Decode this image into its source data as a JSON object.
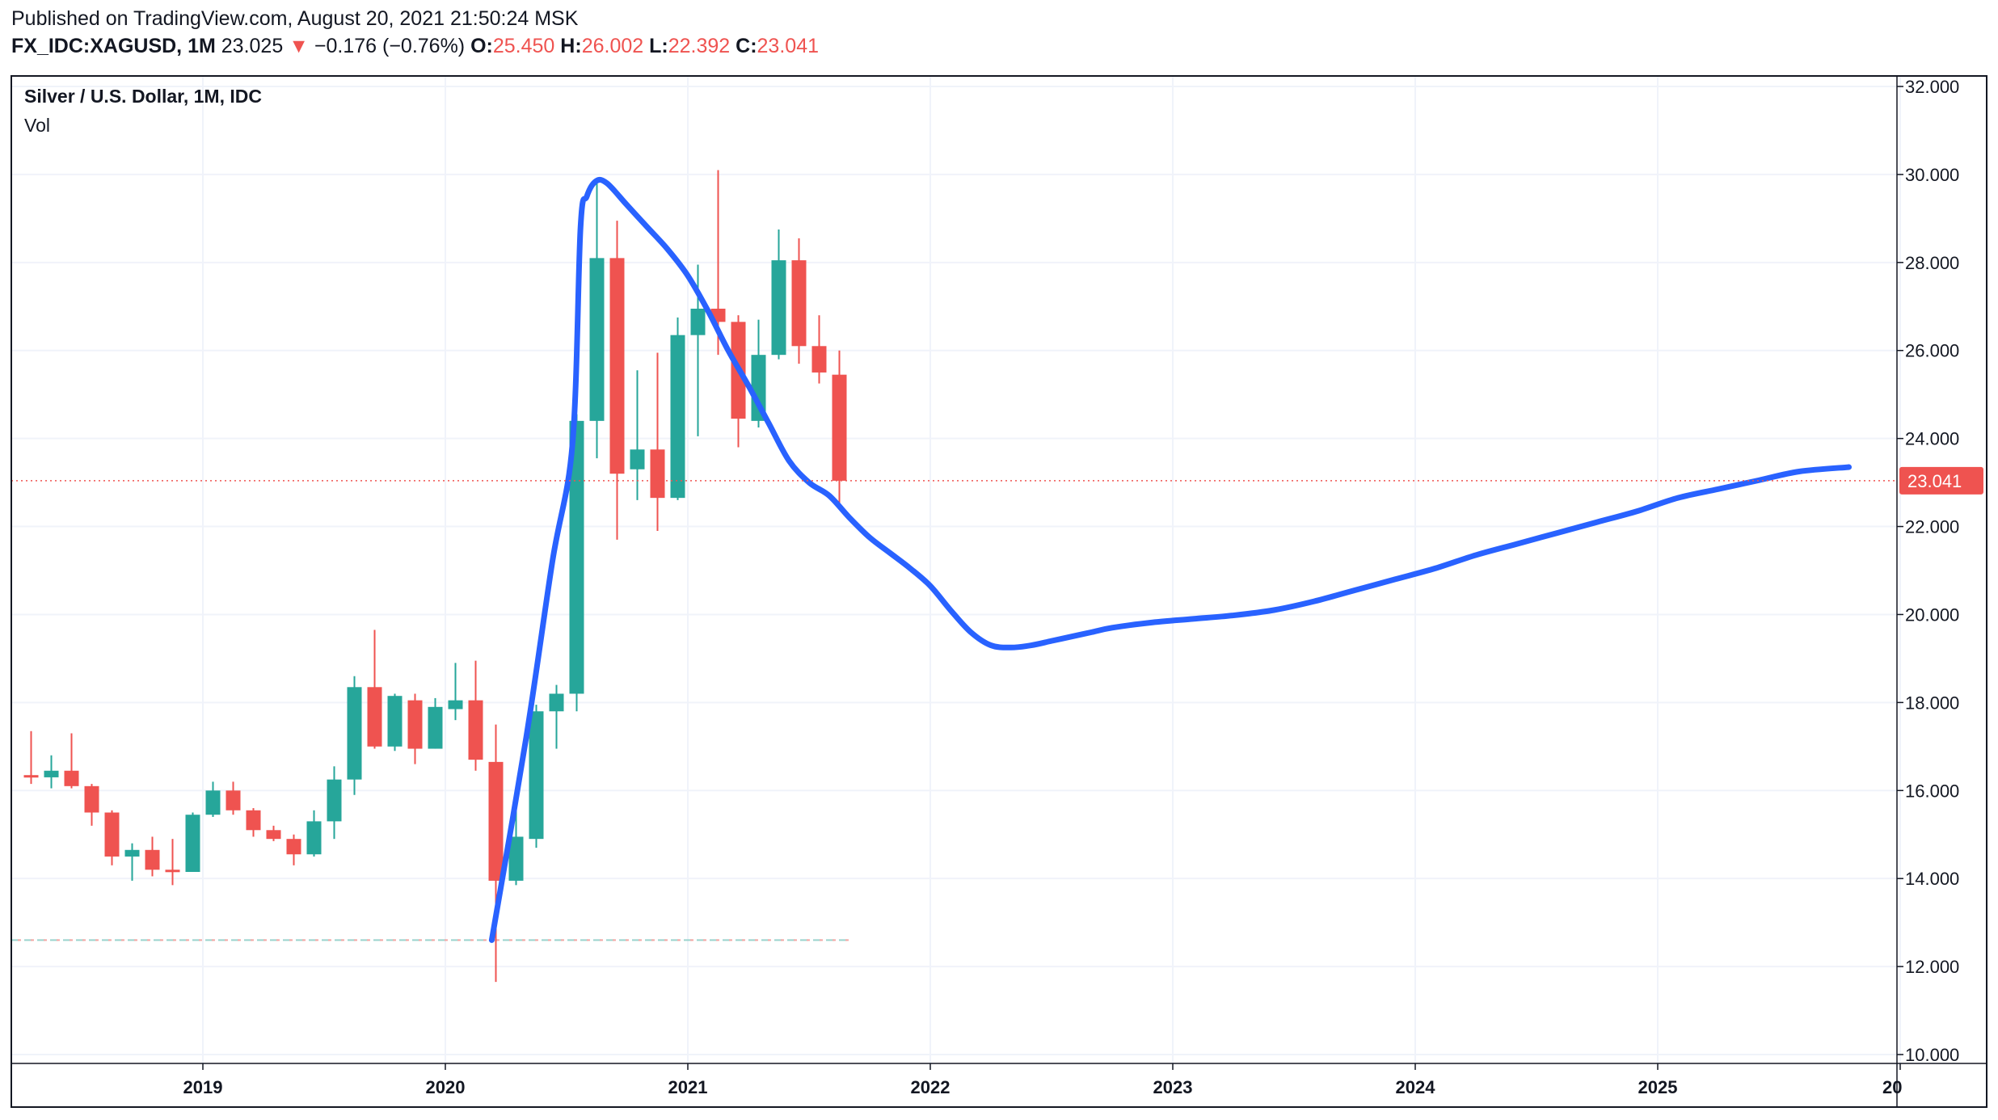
{
  "header": {
    "published": "Published on TradingView.com, August 20, 2021 21:50:24 MSK",
    "symbol": "FX_IDC:XAGUSD, 1M",
    "last": "23.025",
    "change_arrow": "▼",
    "change": "−0.176 (−0.76%)",
    "o_label": "O:",
    "o_value": "25.450",
    "h_label": "H:",
    "h_value": "26.002",
    "l_label": "L:",
    "l_value": "22.392",
    "c_label": "C:",
    "c_value": "23.041"
  },
  "legend": {
    "title": "Silver / U.S. Dollar, 1M, IDC",
    "sub": "Vol"
  },
  "colors": {
    "up": "#26a69a",
    "down": "#ef5350",
    "projection": "#2962ff",
    "grid": "#f0f3fa",
    "frame": "#131722"
  },
  "chart_data": {
    "type": "candlestick",
    "y_ticks": [
      "32.000",
      "30.000",
      "28.000",
      "26.000",
      "24.000",
      "22.000",
      "20.000",
      "18.000",
      "16.000",
      "14.000",
      "12.000",
      "10.000"
    ],
    "ylim": [
      10,
      32
    ],
    "x_ticks": [
      {
        "t": 2019,
        "label": "2019"
      },
      {
        "t": 2020,
        "label": "2020"
      },
      {
        "t": 2021,
        "label": "2021"
      },
      {
        "t": 2022,
        "label": "2022"
      },
      {
        "t": 2023,
        "label": "2023"
      },
      {
        "t": 2024,
        "label": "2024"
      },
      {
        "t": 2025,
        "label": "2025"
      },
      {
        "t": 2026,
        "label": "20"
      }
    ],
    "last_price": 23.041,
    "last_price_label": "23.041",
    "candles": [
      {
        "date": "2018-04",
        "o": 16.35,
        "h": 17.35,
        "l": 16.15,
        "c": 16.3
      },
      {
        "date": "2018-05",
        "o": 16.3,
        "h": 16.8,
        "l": 16.05,
        "c": 16.45
      },
      {
        "date": "2018-06",
        "o": 16.45,
        "h": 17.3,
        "l": 16.05,
        "c": 16.1
      },
      {
        "date": "2018-07",
        "o": 16.1,
        "h": 16.15,
        "l": 15.2,
        "c": 15.5
      },
      {
        "date": "2018-08",
        "o": 15.5,
        "h": 15.55,
        "l": 14.3,
        "c": 14.5
      },
      {
        "date": "2018-09",
        "o": 14.5,
        "h": 14.8,
        "l": 13.95,
        "c": 14.65
      },
      {
        "date": "2018-10",
        "o": 14.65,
        "h": 14.95,
        "l": 14.05,
        "c": 14.2
      },
      {
        "date": "2018-11",
        "o": 14.2,
        "h": 14.9,
        "l": 13.85,
        "c": 14.15
      },
      {
        "date": "2018-12",
        "o": 14.15,
        "h": 15.5,
        "l": 14.15,
        "c": 15.45
      },
      {
        "date": "2019-01",
        "o": 15.45,
        "h": 16.2,
        "l": 15.4,
        "c": 16.0
      },
      {
        "date": "2019-02",
        "o": 16.0,
        "h": 16.2,
        "l": 15.45,
        "c": 15.55
      },
      {
        "date": "2019-03",
        "o": 15.55,
        "h": 15.6,
        "l": 14.95,
        "c": 15.1
      },
      {
        "date": "2019-04",
        "o": 15.1,
        "h": 15.2,
        "l": 14.85,
        "c": 14.9
      },
      {
        "date": "2019-05",
        "o": 14.9,
        "h": 15.0,
        "l": 14.3,
        "c": 14.55
      },
      {
        "date": "2019-06",
        "o": 14.55,
        "h": 15.55,
        "l": 14.5,
        "c": 15.3
      },
      {
        "date": "2019-07",
        "o": 15.3,
        "h": 16.55,
        "l": 14.9,
        "c": 16.25
      },
      {
        "date": "2019-08",
        "o": 16.25,
        "h": 18.6,
        "l": 15.9,
        "c": 18.35
      },
      {
        "date": "2019-09",
        "o": 18.35,
        "h": 19.65,
        "l": 16.95,
        "c": 17.0
      },
      {
        "date": "2019-10",
        "o": 17.0,
        "h": 18.2,
        "l": 16.9,
        "c": 18.15
      },
      {
        "date": "2019-11",
        "o": 18.05,
        "h": 18.2,
        "l": 16.6,
        "c": 16.95
      },
      {
        "date": "2019-12",
        "o": 16.95,
        "h": 18.1,
        "l": 16.95,
        "c": 17.9
      },
      {
        "date": "2020-01",
        "o": 17.85,
        "h": 18.9,
        "l": 17.6,
        "c": 18.05
      },
      {
        "date": "2020-02",
        "o": 18.05,
        "h": 18.95,
        "l": 16.45,
        "c": 16.7
      },
      {
        "date": "2020-03",
        "o": 16.65,
        "h": 17.5,
        "l": 11.65,
        "c": 13.95
      },
      {
        "date": "2020-04",
        "o": 13.95,
        "h": 15.85,
        "l": 13.85,
        "c": 14.95
      },
      {
        "date": "2020-05",
        "o": 14.9,
        "h": 17.95,
        "l": 14.7,
        "c": 17.8
      },
      {
        "date": "2020-06",
        "o": 17.8,
        "h": 18.4,
        "l": 16.95,
        "c": 18.2
      },
      {
        "date": "2020-07",
        "o": 18.2,
        "h": 24.55,
        "l": 17.8,
        "c": 24.4
      },
      {
        "date": "2020-08",
        "o": 24.4,
        "h": 29.85,
        "l": 23.55,
        "c": 28.1
      },
      {
        "date": "2020-09",
        "o": 28.1,
        "h": 28.95,
        "l": 21.7,
        "c": 23.2
      },
      {
        "date": "2020-10",
        "o": 23.3,
        "h": 25.55,
        "l": 22.6,
        "c": 23.75
      },
      {
        "date": "2020-11",
        "o": 23.75,
        "h": 25.95,
        "l": 21.9,
        "c": 22.65
      },
      {
        "date": "2020-12",
        "o": 22.65,
        "h": 26.75,
        "l": 22.6,
        "c": 26.35
      },
      {
        "date": "2021-01",
        "o": 26.35,
        "h": 27.95,
        "l": 24.05,
        "c": 26.95
      },
      {
        "date": "2021-02",
        "o": 26.95,
        "h": 30.1,
        "l": 25.9,
        "c": 26.65
      },
      {
        "date": "2021-03",
        "o": 26.65,
        "h": 26.8,
        "l": 23.8,
        "c": 24.45
      },
      {
        "date": "2021-04",
        "o": 24.4,
        "h": 26.7,
        "l": 24.25,
        "c": 25.9
      },
      {
        "date": "2021-05",
        "o": 25.9,
        "h": 28.75,
        "l": 25.8,
        "c": 28.05
      },
      {
        "date": "2021-06",
        "o": 28.05,
        "h": 28.55,
        "l": 25.7,
        "c": 26.1
      },
      {
        "date": "2021-07",
        "o": 26.1,
        "h": 26.8,
        "l": 25.25,
        "c": 25.5
      },
      {
        "date": "2021-08",
        "o": 25.45,
        "h": 26.0,
        "l": 22.39,
        "c": 23.04
      }
    ],
    "projection": [
      {
        "date": "2020-03-10",
        "v": 12.6
      },
      {
        "date": "2020-05-01",
        "v": 17.2
      },
      {
        "date": "2020-06-10",
        "v": 21.2
      },
      {
        "date": "2020-07-10",
        "v": 23.9
      },
      {
        "date": "2020-07-22",
        "v": 28.8
      },
      {
        "date": "2020-08-01",
        "v": 29.5
      },
      {
        "date": "2020-08-15",
        "v": 29.85
      },
      {
        "date": "2020-09-01",
        "v": 29.8
      },
      {
        "date": "2020-10-01",
        "v": 29.3
      },
      {
        "date": "2020-11-01",
        "v": 28.8
      },
      {
        "date": "2020-12-01",
        "v": 28.3
      },
      {
        "date": "2021-01-01",
        "v": 27.7
      },
      {
        "date": "2021-02-01",
        "v": 26.9
      },
      {
        "date": "2021-03-01",
        "v": 26.0
      },
      {
        "date": "2021-04-01",
        "v": 25.2
      },
      {
        "date": "2021-05-01",
        "v": 24.35
      },
      {
        "date": "2021-06-01",
        "v": 23.5
      },
      {
        "date": "2021-07-01",
        "v": 23.0
      },
      {
        "date": "2021-08-01",
        "v": 22.7
      },
      {
        "date": "2021-09-01",
        "v": 22.2
      },
      {
        "date": "2021-10-01",
        "v": 21.75
      },
      {
        "date": "2021-11-01",
        "v": 21.4
      },
      {
        "date": "2021-12-01",
        "v": 21.05
      },
      {
        "date": "2022-01-01",
        "v": 20.65
      },
      {
        "date": "2022-02-01",
        "v": 20.1
      },
      {
        "date": "2022-03-01",
        "v": 19.6
      },
      {
        "date": "2022-04-01",
        "v": 19.3
      },
      {
        "date": "2022-05-01",
        "v": 19.25
      },
      {
        "date": "2022-06-01",
        "v": 19.3
      },
      {
        "date": "2022-07-01",
        "v": 19.4
      },
      {
        "date": "2022-08-01",
        "v": 19.5
      },
      {
        "date": "2022-09-01",
        "v": 19.6
      },
      {
        "date": "2022-10-01",
        "v": 19.7
      },
      {
        "date": "2022-12-01",
        "v": 19.82
      },
      {
        "date": "2023-02-01",
        "v": 19.9
      },
      {
        "date": "2023-04-01",
        "v": 19.98
      },
      {
        "date": "2023-06-01",
        "v": 20.1
      },
      {
        "date": "2023-08-01",
        "v": 20.3
      },
      {
        "date": "2023-10-01",
        "v": 20.55
      },
      {
        "date": "2023-12-01",
        "v": 20.8
      },
      {
        "date": "2024-02-01",
        "v": 21.05
      },
      {
        "date": "2024-04-01",
        "v": 21.35
      },
      {
        "date": "2024-06-01",
        "v": 21.6
      },
      {
        "date": "2024-08-01",
        "v": 21.85
      },
      {
        "date": "2024-10-01",
        "v": 22.1
      },
      {
        "date": "2024-12-01",
        "v": 22.35
      },
      {
        "date": "2025-02-01",
        "v": 22.65
      },
      {
        "date": "2025-04-01",
        "v": 22.85
      },
      {
        "date": "2025-06-01",
        "v": 23.05
      },
      {
        "date": "2025-08-01",
        "v": 23.25
      },
      {
        "date": "2025-10-15",
        "v": 23.35
      }
    ]
  }
}
